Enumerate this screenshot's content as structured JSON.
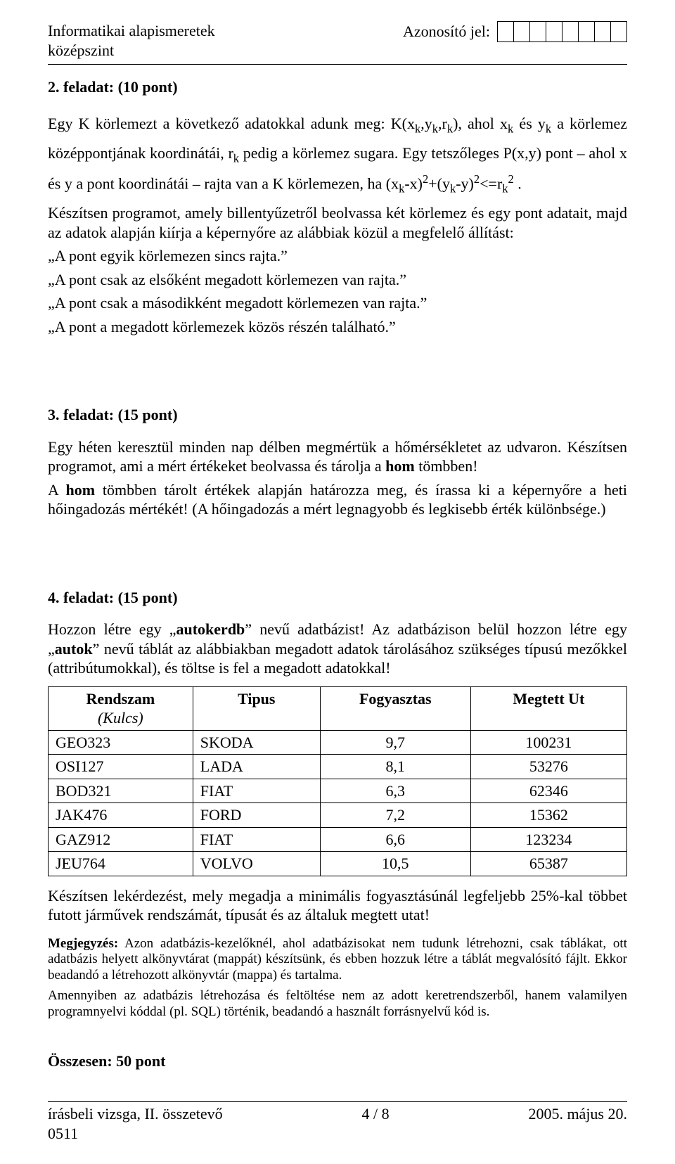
{
  "header": {
    "title_line1": "Informatikai alapismeretek",
    "title_line2": "középszint",
    "id_label": "Azonosító jel:",
    "id_box_count": 8
  },
  "task2": {
    "title": "2. feladat: (10 pont)",
    "p1_a": "Egy K körlemezt a következő adatokkal adunk meg: K(x",
    "p1_b": ",y",
    "p1_c": ",r",
    "p1_d": "), ahol x",
    "p1_e": " és y",
    "p1_f": " a körlemez középpontjának koordinátái, r",
    "p1_g": " pedig a körlemez sugara. Egy tetszőleges P(x,y) pont – ahol x és y a pont koordinátái – rajta van a K körlemezen, ha (x",
    "p1_h": "-x)",
    "p1_i": "+(y",
    "p1_j": "-y)",
    "p1_k": "<=r",
    "p1_l": " .",
    "sub_k": "k",
    "sup_2": "2",
    "p2": "Készítsen programot, amely billentyűzetről beolvassa két körlemez és egy pont adatait, majd az adatok alapján kiírja a képernyőre az alábbiak közül a megfelelő állítást:",
    "q1": "„A pont egyik körlemezen sincs rajta.”",
    "q2": "„A pont csak az elsőként megadott körlemezen van rajta.”",
    "q3": "„A pont csak a másodikként megadott körlemezen van rajta.”",
    "q4": "„A pont a megadott körlemezek közös részén található.”"
  },
  "task3": {
    "title": "3. feladat: (15 pont)",
    "p1_a": "Egy héten keresztül minden nap délben megmértük a hőmérsékletet az udvaron. Készítsen programot, ami a mért értékeket beolvassa és tárolja a ",
    "p1_bold1": "hom",
    "p1_b": " tömbben!",
    "p2_a": "A ",
    "p2_bold1": "hom",
    "p2_b": " tömbben tárolt értékek alapján határozza meg, és írassa ki a képernyőre a heti hőingadozás mértékét! (A hőingadozás a mért legnagyobb és legkisebb érték különbsége.)"
  },
  "task4": {
    "title": "4. feladat: (15 pont)",
    "p1_a": "Hozzon létre egy „",
    "p1_bold1": "autokerdb",
    "p1_b": "” nevű adatbázist! Az adatbázison belül hozzon létre egy „",
    "p1_bold2": "autok",
    "p1_c": "” nevű táblát az alábbiakban megadott adatok tárolásához szükséges típusú mezőkkel (attribútumokkal), és töltse is fel a megadott adatokkal!",
    "table": {
      "columns": [
        "Rendszam",
        "Tipus",
        "Fogyasztas",
        "Megtett Ut"
      ],
      "key_note": "(Kulcs)",
      "rows": [
        [
          "GEO323",
          "SKODA",
          "9,7",
          "100231"
        ],
        [
          "OSI127",
          "LADA",
          "8,1",
          "53276"
        ],
        [
          "BOD321",
          "FIAT",
          "6,3",
          "62346"
        ],
        [
          "JAK476",
          "FORD",
          "7,2",
          "15362"
        ],
        [
          "GAZ912",
          "FIAT",
          "6,6",
          "123234"
        ],
        [
          "JEU764",
          "VOLVO",
          "10,5",
          "65387"
        ]
      ]
    },
    "p2": "Készítsen lekérdezést, mely megadja a minimális fogyasztásúnál legfeljebb 25%-kal többet futott járművek rendszámát, típusát és az általuk megtett utat!",
    "note_bold": "Megjegyzés:",
    "note_body1": " Azon adatbázis-kezelőknél, ahol adatbázisokat nem tudunk létrehozni, csak táblákat, ott adatbázis helyett alkönyvtárat (mappát) készítsünk, és ebben hozzuk létre a táblát megvalósító fájlt. Ekkor beadandó a létrehozott alkönyvtár (mappa) és tartalma.",
    "note_body2": "Amennyiben az adatbázis létrehozása és feltöltése nem az adott keretrendszerből, hanem valamilyen programnyelvi kóddal (pl. SQL) történik, beadandó a használt forrásnyelvű kód is."
  },
  "total": "Összesen: 50 pont",
  "footer": {
    "left1": "írásbeli vizsga, II. összetevő",
    "left2": "0511",
    "center": "4 / 8",
    "right": "2005. május 20."
  }
}
